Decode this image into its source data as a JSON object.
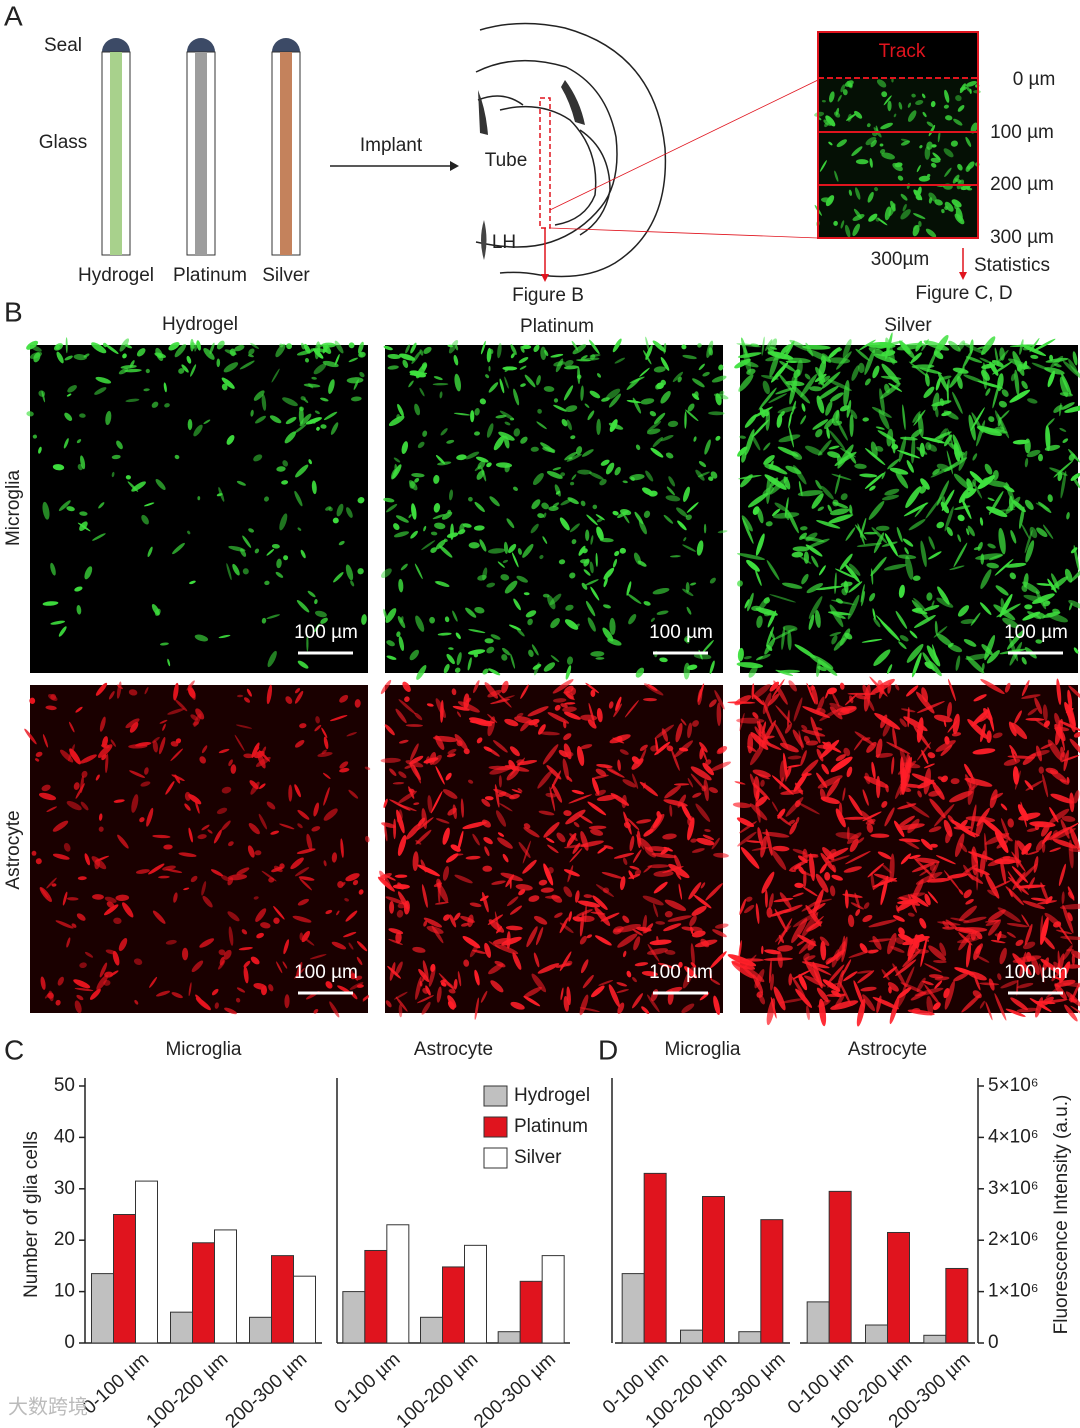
{
  "panel_a": {
    "label": "A",
    "seal": "Seal",
    "glass": "Glass",
    "probes": [
      "Hydrogel",
      "Platinum",
      "Silver"
    ],
    "implant": "Implant",
    "tube": "Tube",
    "lh": "LH",
    "figure_b": "Figure B",
    "track": "Track",
    "depths": [
      "0 µm",
      "100 µm",
      "200 µm",
      "300 µm"
    ],
    "width": "300µm",
    "statistics": "Statistics",
    "figure_cd": "Figure C, D"
  },
  "panel_b": {
    "label": "B",
    "columns": [
      "Hydrogel",
      "Platinum",
      "Silver"
    ],
    "rows": [
      "Microglia",
      "Astrocyte"
    ],
    "scale_bar": "100 µm"
  },
  "panel_c_label": "C",
  "panel_d_label": "D",
  "watermark": "大数跨境",
  "chart_data": [
    {
      "type": "bar",
      "title": "Microglia",
      "ylabel": "Number of glia cells",
      "categories": [
        "0-100 µm",
        "100-200 µm",
        "200-300 µm"
      ],
      "series": [
        {
          "name": "Hydrogel",
          "color": "#c0c0c0",
          "values": [
            13.5,
            6,
            5
          ]
        },
        {
          "name": "Platinum",
          "color": "#e0141e",
          "values": [
            25,
            19.5,
            17
          ]
        },
        {
          "name": "Silver",
          "color": "#ffffff",
          "values": [
            31.5,
            22,
            13
          ]
        }
      ],
      "ylim": [
        0,
        50
      ],
      "yticks": [
        0,
        10,
        20,
        30,
        40,
        50
      ]
    },
    {
      "type": "bar",
      "title": "Astrocyte",
      "categories": [
        "0-100 µm",
        "100-200 µm",
        "200-300 µm"
      ],
      "series": [
        {
          "name": "Hydrogel",
          "color": "#c0c0c0",
          "values": [
            10,
            5,
            2.2
          ]
        },
        {
          "name": "Platinum",
          "color": "#e0141e",
          "values": [
            18,
            14.8,
            12
          ]
        },
        {
          "name": "Silver",
          "color": "#ffffff",
          "values": [
            23,
            19,
            17
          ]
        }
      ],
      "ylim": [
        0,
        50
      ],
      "legend": "upper right"
    },
    {
      "type": "bar",
      "title": "Microglia",
      "categories": [
        "0-100 µm",
        "100-200 µm",
        "200-300 µm"
      ],
      "series": [
        {
          "name": "Hydrogel",
          "color": "#c0c0c0",
          "values": [
            1350000,
            250000,
            220000
          ]
        },
        {
          "name": "Platinum",
          "color": "#e0141e",
          "values": [
            3300000,
            2850000,
            2400000
          ]
        }
      ],
      "ylim": [
        0,
        5000000
      ]
    },
    {
      "type": "bar",
      "title": "Astrocyte",
      "ylabel": "Fluorescence Intensity (a.u.)",
      "categories": [
        "0-100 µm",
        "100-200 µm",
        "200-300 µm"
      ],
      "series": [
        {
          "name": "Hydrogel",
          "color": "#c0c0c0",
          "values": [
            800000,
            350000,
            150000
          ]
        },
        {
          "name": "Platinum",
          "color": "#e0141e",
          "values": [
            2950000,
            2150000,
            1450000
          ]
        }
      ],
      "ylim": [
        0,
        5000000
      ],
      "yticks": [
        0,
        {
          "value": 1000000,
          "label": "1×10⁶"
        },
        {
          "value": 2000000,
          "label": "2×10⁶"
        },
        {
          "value": 3000000,
          "label": "3×10⁶"
        },
        {
          "value": 4000000,
          "label": "4×10⁶"
        },
        {
          "value": 5000000,
          "label": "5×10⁶"
        }
      ]
    }
  ]
}
